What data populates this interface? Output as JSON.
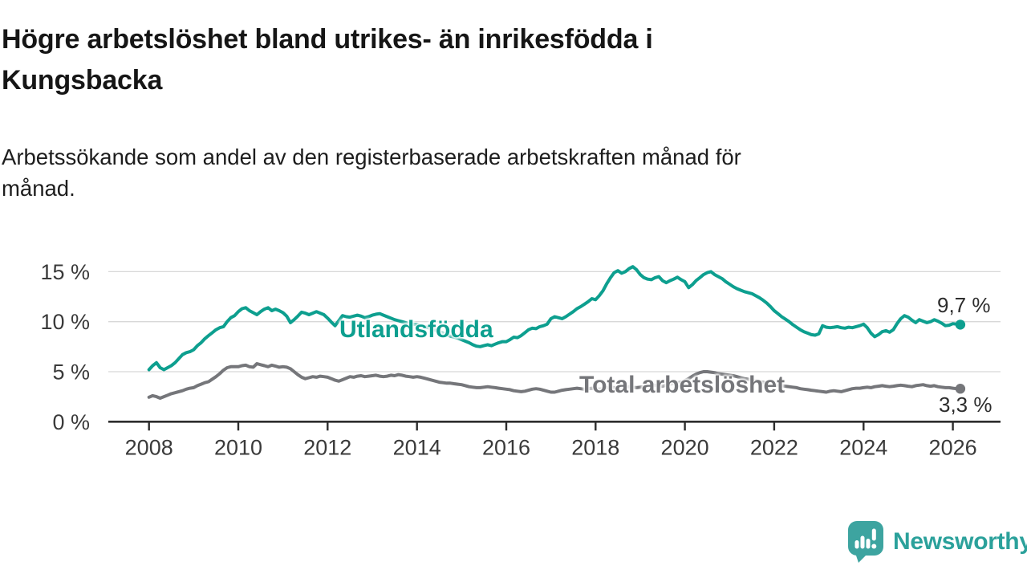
{
  "header": {
    "title": "Högre arbetslöshet bland utrikes- än inrikesfödda i\nKungsbacka",
    "subtitle": "Arbetssökande som andel av den registerbaserade arbetskraften månad för\nmånad."
  },
  "chart_data": {
    "type": "line",
    "title": "Högre arbetslöshet bland utrikes- än inrikesfödda i Kungsbacka",
    "subtitle": "Arbetssökande som andel av den registerbaserade arbetskraften månad för månad.",
    "x_start_year": 2008,
    "x_step_months": 1,
    "xlim": [
      2007.1,
      2027.1
    ],
    "ylim": [
      0,
      16.6
    ],
    "grid": "horizontal",
    "legend": "inline-labels",
    "x_ticks": [
      {
        "value": 2008,
        "label": "2008"
      },
      {
        "value": 2010,
        "label": "2010"
      },
      {
        "value": 2012,
        "label": "2012"
      },
      {
        "value": 2014,
        "label": "2014"
      },
      {
        "value": 2016,
        "label": "2016"
      },
      {
        "value": 2018,
        "label": "2018"
      },
      {
        "value": 2020,
        "label": "2020"
      },
      {
        "value": 2022,
        "label": "2022"
      },
      {
        "value": 2024,
        "label": "2024"
      },
      {
        "value": 2026,
        "label": "2026"
      }
    ],
    "y_ticks": [
      {
        "value": 0,
        "label": "0 %"
      },
      {
        "value": 5,
        "label": "5 %"
      },
      {
        "value": 10,
        "label": "10 %"
      },
      {
        "value": 15,
        "label": "15 %"
      }
    ],
    "series": [
      {
        "name": "Utlandsfödda",
        "color": "#0d9f8f",
        "end_label": "9,7 %",
        "end_value": 9.7,
        "values": [
          5.2,
          5.6,
          5.9,
          5.4,
          5.2,
          5.4,
          5.6,
          5.9,
          6.3,
          6.7,
          6.9,
          7.0,
          7.2,
          7.6,
          7.9,
          8.3,
          8.6,
          8.9,
          9.2,
          9.4,
          9.5,
          10.0,
          10.4,
          10.6,
          11.0,
          11.3,
          11.4,
          11.1,
          10.9,
          10.7,
          11.0,
          11.25,
          11.4,
          11.1,
          11.25,
          11.1,
          10.9,
          10.55,
          9.9,
          10.2,
          10.55,
          10.95,
          10.85,
          10.7,
          10.85,
          11.0,
          10.85,
          10.7,
          10.35,
          9.95,
          9.6,
          10.1,
          10.6,
          10.5,
          10.45,
          10.55,
          10.65,
          10.55,
          10.4,
          10.5,
          10.65,
          10.75,
          10.8,
          10.65,
          10.5,
          10.35,
          10.2,
          10.1,
          10.0,
          9.9,
          9.8,
          9.75,
          9.7,
          9.6,
          9.5,
          9.4,
          9.3,
          9.15,
          9.0,
          8.85,
          8.7,
          8.55,
          8.45,
          8.35,
          8.2,
          8.05,
          7.9,
          7.7,
          7.55,
          7.5,
          7.6,
          7.7,
          7.6,
          7.75,
          7.9,
          8.0,
          8.0,
          8.2,
          8.45,
          8.4,
          8.6,
          8.9,
          9.2,
          9.35,
          9.3,
          9.5,
          9.6,
          9.75,
          10.3,
          10.5,
          10.4,
          10.3,
          10.5,
          10.75,
          11.0,
          11.3,
          11.5,
          11.75,
          12.0,
          12.3,
          12.2,
          12.6,
          13.1,
          13.8,
          14.4,
          14.9,
          15.1,
          14.85,
          15.0,
          15.3,
          15.5,
          15.2,
          14.7,
          14.4,
          14.25,
          14.2,
          14.4,
          14.5,
          14.1,
          13.9,
          14.1,
          14.25,
          14.45,
          14.2,
          14.0,
          13.4,
          13.7,
          14.1,
          14.4,
          14.7,
          14.9,
          15.0,
          14.7,
          14.5,
          14.3,
          14.0,
          13.75,
          13.5,
          13.3,
          13.15,
          13.0,
          12.9,
          12.8,
          12.6,
          12.4,
          12.15,
          11.85,
          11.5,
          11.1,
          10.8,
          10.5,
          10.25,
          10.0,
          9.7,
          9.45,
          9.2,
          9.0,
          8.85,
          8.7,
          8.65,
          8.8,
          9.6,
          9.45,
          9.4,
          9.45,
          9.5,
          9.4,
          9.35,
          9.45,
          9.4,
          9.5,
          9.6,
          9.75,
          9.4,
          8.85,
          8.5,
          8.7,
          9.0,
          9.1,
          8.95,
          9.2,
          9.8,
          10.3,
          10.6,
          10.45,
          10.15,
          9.9,
          10.2,
          10.05,
          9.9,
          10.0,
          10.2,
          10.05,
          9.85,
          9.6,
          9.65,
          9.8,
          9.75,
          9.7
        ]
      },
      {
        "name": "Total arbetslöshet",
        "color": "#75767a",
        "end_label": "3,3 %",
        "end_value": 3.3,
        "values": [
          2.45,
          2.6,
          2.5,
          2.35,
          2.5,
          2.65,
          2.8,
          2.9,
          3.0,
          3.1,
          3.25,
          3.35,
          3.4,
          3.6,
          3.75,
          3.9,
          4.0,
          4.25,
          4.5,
          4.8,
          5.15,
          5.4,
          5.5,
          5.5,
          5.5,
          5.6,
          5.65,
          5.5,
          5.45,
          5.8,
          5.7,
          5.6,
          5.5,
          5.65,
          5.55,
          5.45,
          5.5,
          5.45,
          5.3,
          5.0,
          4.7,
          4.45,
          4.3,
          4.4,
          4.5,
          4.45,
          4.55,
          4.5,
          4.45,
          4.3,
          4.15,
          4.05,
          4.2,
          4.35,
          4.5,
          4.45,
          4.55,
          4.6,
          4.5,
          4.55,
          4.6,
          4.65,
          4.55,
          4.5,
          4.55,
          4.65,
          4.6,
          4.7,
          4.65,
          4.55,
          4.5,
          4.45,
          4.5,
          4.45,
          4.35,
          4.25,
          4.15,
          4.05,
          3.95,
          3.9,
          3.85,
          3.85,
          3.8,
          3.75,
          3.7,
          3.6,
          3.5,
          3.45,
          3.4,
          3.4,
          3.45,
          3.5,
          3.45,
          3.4,
          3.35,
          3.3,
          3.25,
          3.2,
          3.1,
          3.05,
          3.0,
          3.05,
          3.15,
          3.25,
          3.3,
          3.25,
          3.15,
          3.05,
          2.95,
          2.95,
          3.05,
          3.15,
          3.2,
          3.25,
          3.3,
          3.35,
          3.3,
          3.25,
          3.3,
          3.35,
          3.3,
          3.25,
          3.3,
          3.4,
          3.45,
          3.4,
          3.35,
          3.4,
          3.45,
          3.5,
          3.45,
          3.4,
          3.45,
          3.5,
          3.55,
          3.6,
          3.65,
          3.6,
          3.55,
          3.65,
          3.75,
          3.85,
          3.9,
          3.95,
          4.1,
          4.3,
          4.55,
          4.75,
          4.9,
          5.0,
          5.0,
          4.95,
          4.9,
          4.8,
          4.75,
          4.7,
          4.65,
          4.6,
          4.5,
          4.4,
          4.3,
          4.25,
          4.15,
          4.1,
          4.0,
          3.95,
          3.85,
          3.8,
          3.7,
          3.65,
          3.6,
          3.55,
          3.5,
          3.45,
          3.4,
          3.3,
          3.25,
          3.2,
          3.15,
          3.1,
          3.05,
          3.0,
          2.95,
          3.05,
          3.1,
          3.05,
          3.0,
          3.1,
          3.2,
          3.3,
          3.35,
          3.35,
          3.4,
          3.45,
          3.4,
          3.5,
          3.55,
          3.6,
          3.55,
          3.5,
          3.55,
          3.6,
          3.65,
          3.6,
          3.55,
          3.5,
          3.6,
          3.65,
          3.7,
          3.6,
          3.55,
          3.6,
          3.5,
          3.45,
          3.4,
          3.4,
          3.35,
          3.3,
          3.3
        ]
      }
    ],
    "colors": {
      "grid": "#d8d8d8",
      "axis": "#2d2d2d",
      "tick_text": "#3a3a3a"
    }
  },
  "branding": {
    "logo_text": "Newsworthy",
    "icon": "newsworthy-speech-bubble-chart-icon",
    "icon_color": "#3da4a0",
    "text_color": "#2ba19b"
  }
}
